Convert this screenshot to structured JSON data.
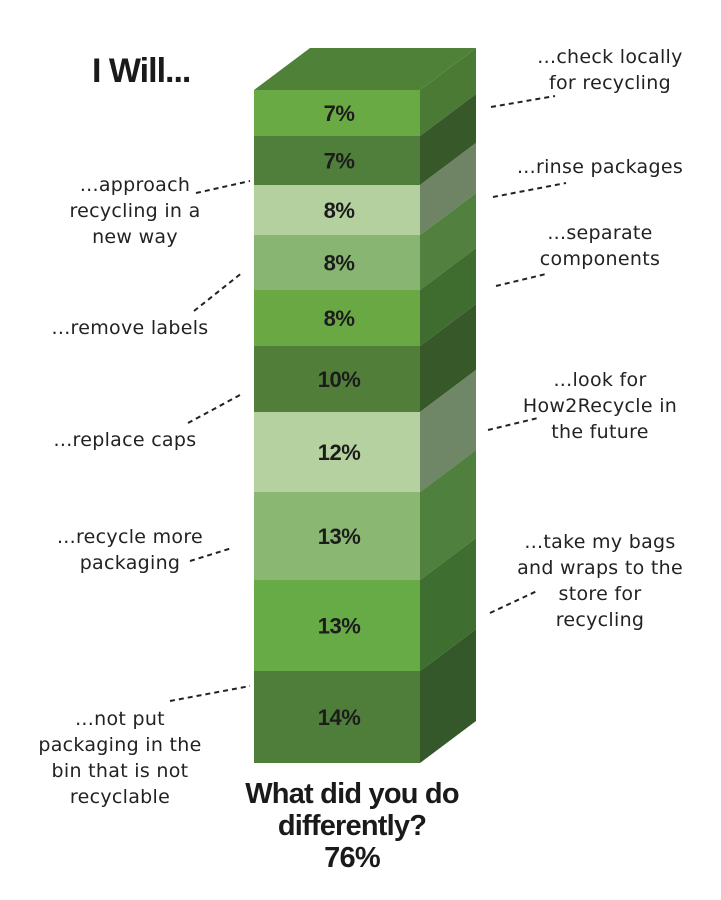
{
  "header": {
    "title": "I Will..."
  },
  "footer": {
    "question": "What did you do differently?",
    "total": "76%"
  },
  "chart_data": {
    "type": "bar",
    "subtype": "3d-stacked-single-column",
    "title": "What did you do differently? 76%",
    "left_heading": "I Will...",
    "stack_order": "top-to-bottom",
    "categories": [
      "...check locally for recycling",
      "...approach recycling in a new way",
      "...rinse packages",
      "...separate components",
      "...remove labels",
      "...replace caps",
      "...look for How2Recycle in the future",
      "...recycle more packaging",
      "...take my bags and wraps to the store for recycling",
      "...not put packaging in the bin that is not recyclable"
    ],
    "values": [
      7,
      7,
      8,
      8,
      8,
      10,
      12,
      13,
      13,
      14
    ],
    "value_labels": [
      "7%",
      "7%",
      "8%",
      "8%",
      "8%",
      "10%",
      "12%",
      "13%",
      "13%",
      "14%"
    ],
    "unit": "%",
    "total_label": "76%",
    "colors": {
      "front": [
        "#6aaa45",
        "#4f7f3a",
        "#b3d09e",
        "#88b672",
        "#6aa844",
        "#517f3a",
        "#b5d1a0",
        "#8ab872",
        "#67ab46",
        "#4e7e39"
      ],
      "side": [
        "#4b7a34",
        "#37592a",
        "#6e8465",
        "#52803f",
        "#3f6d30",
        "#37592a",
        "#6f8667",
        "#50803e",
        "#3f6f30",
        "#35582a"
      ],
      "top": "#4f8238"
    },
    "grid": false,
    "legend": "none (callout labels with dashed leader lines)"
  },
  "segments": [
    {
      "label": "7%"
    },
    {
      "label": "7%"
    },
    {
      "label": "8%"
    },
    {
      "label": "8%"
    },
    {
      "label": "8%"
    },
    {
      "label": "10%"
    },
    {
      "label": "12%"
    },
    {
      "label": "13%"
    },
    {
      "label": "13%"
    },
    {
      "label": "14%"
    }
  ],
  "callouts": {
    "left": [
      {
        "text": "...approach\nrecycling in a\nnew way"
      },
      {
        "text": "...remove labels"
      },
      {
        "text": "...replace caps"
      },
      {
        "text": "...recycle more\npackaging"
      },
      {
        "text": "...not put\npackaging in the\nbin that is not\nrecyclable"
      }
    ],
    "right": [
      {
        "text": "...check locally\nfor recycling"
      },
      {
        "text": "...rinse packages"
      },
      {
        "text": "...separate\ncomponents"
      },
      {
        "text": "...look for\nHow2Recycle in\nthe future"
      },
      {
        "text": "...take my bags\nand wraps to the\nstore for\nrecycling"
      }
    ]
  }
}
